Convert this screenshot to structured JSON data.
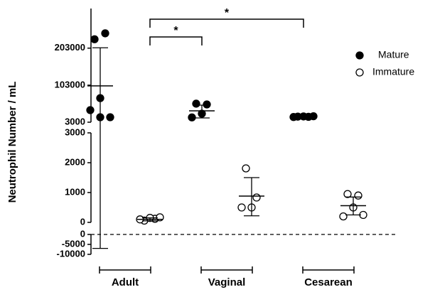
{
  "chart_data": {
    "type": "dot",
    "y_label": "Neutrophil Number / mL",
    "categories": [
      "Adult",
      "Vaginal",
      "Cesarean"
    ],
    "y_segments": [
      {
        "ylim": [
          3000,
          310000
        ],
        "yticks": [
          3000,
          103000,
          203000
        ]
      },
      {
        "ylim": [
          0,
          3000
        ],
        "yticks": [
          0,
          1000,
          2000,
          3000
        ]
      },
      {
        "ylim": [
          -10000,
          0
        ],
        "yticks": [
          0,
          -5000,
          -10000
        ]
      }
    ],
    "reference_line": 0,
    "legend_position": "upper right",
    "series": [
      {
        "name": "Mature",
        "color": "#000000",
        "filled": true,
        "values": [
          [
            227000,
            243000,
            68000,
            35600,
            16400,
            16400
          ],
          [
            53000,
            51000,
            26000,
            16000
          ],
          [
            18000,
            17500,
            18500,
            17000,
            19000
          ]
        ],
        "mean": [
          101000,
          33700,
          18000
        ],
        "err_high": [
          204000,
          49000,
          19500
        ],
        "err_low": [
          -7000,
          14500,
          16500
        ]
      },
      {
        "name": "Immature",
        "color": "#000000",
        "filled": false,
        "values": [
          [
            60,
            120,
            150,
            100,
            170
          ],
          [
            1810,
            833,
            500,
            500
          ],
          [
            950,
            900,
            500,
            200,
            250
          ]
        ],
        "mean": [
          100,
          880,
          560
        ],
        "err_high": [
          150,
          1500,
          850
        ],
        "err_low": [
          50,
          220,
          250
        ]
      }
    ],
    "significance": [
      {
        "from": 0,
        "to": 1,
        "label": "*"
      },
      {
        "from": 0,
        "to": 2,
        "label": "*"
      }
    ]
  }
}
